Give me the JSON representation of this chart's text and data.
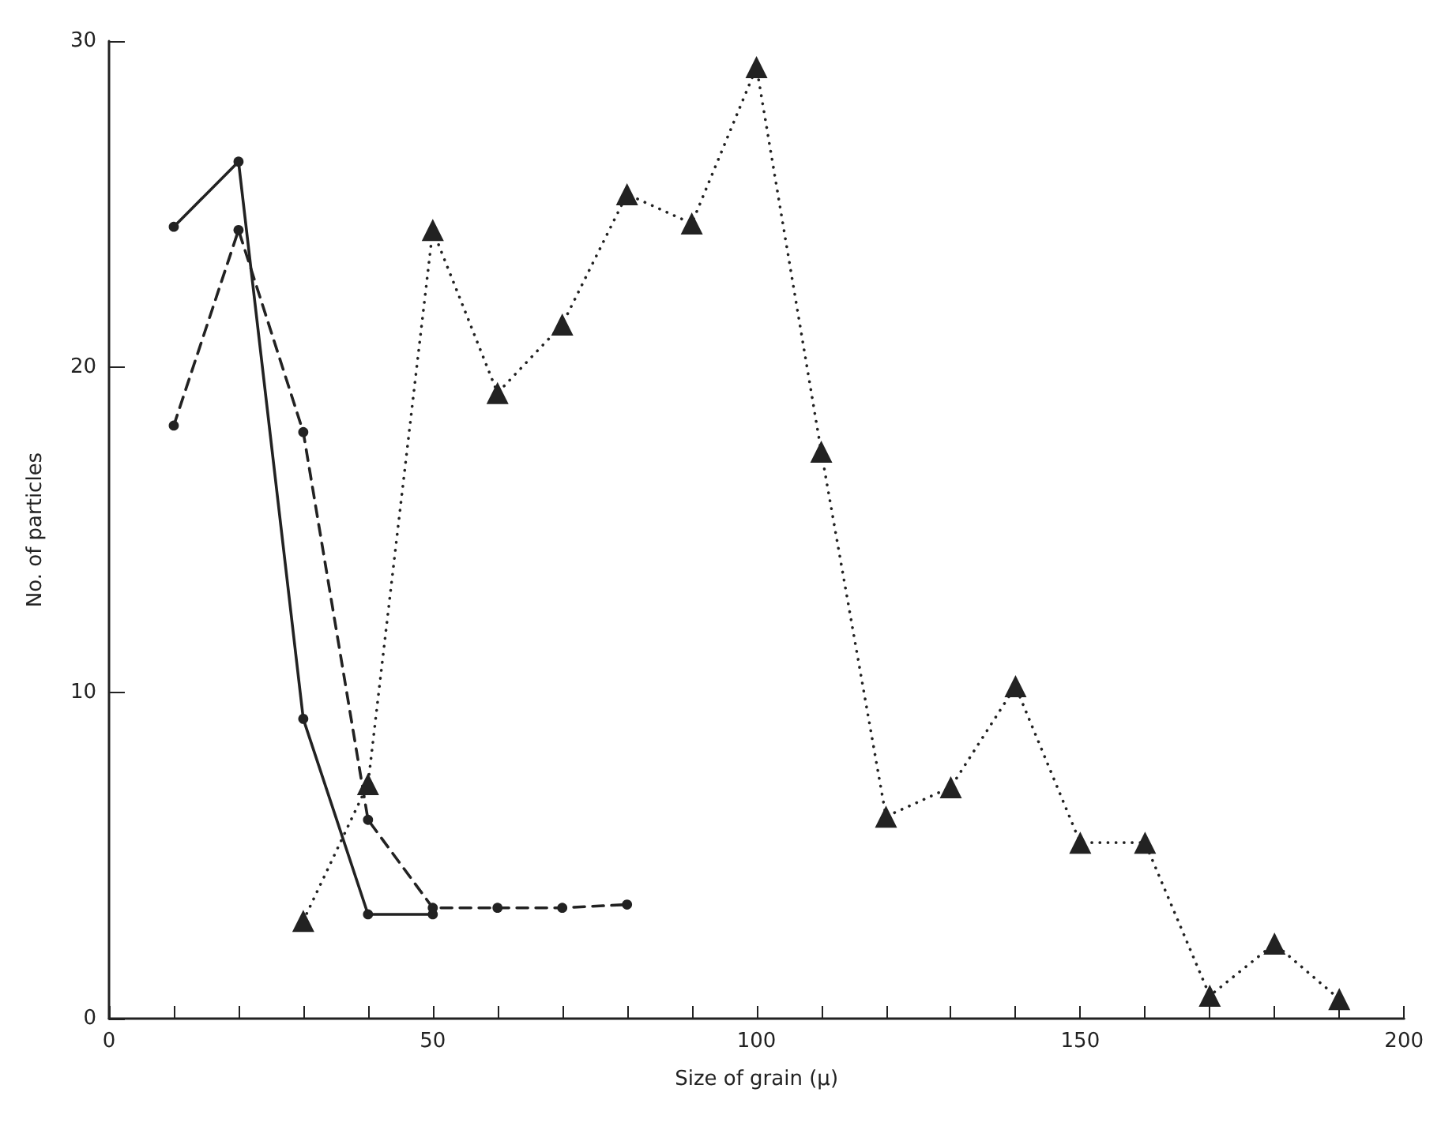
{
  "chart_data": {
    "type": "line",
    "xlabel": "Size of grain (μ)",
    "ylabel": "No. of particles",
    "xlim": [
      0,
      200
    ],
    "ylim": [
      0,
      30
    ],
    "xticks": [
      0,
      {
        "value": 10,
        "label": null
      },
      {
        "value": 20,
        "label": null
      },
      {
        "value": 30,
        "label": null
      },
      {
        "value": 40,
        "label": null
      },
      50,
      {
        "value": 60,
        "label": null
      },
      {
        "value": 70,
        "label": null
      },
      {
        "value": 80,
        "label": null
      },
      {
        "value": 90,
        "label": null
      },
      100,
      {
        "value": 110,
        "label": null
      },
      {
        "value": 120,
        "label": null
      },
      {
        "value": 130,
        "label": null
      },
      {
        "value": 140,
        "label": null
      },
      150,
      {
        "value": 160,
        "label": null
      },
      {
        "value": 170,
        "label": null
      },
      {
        "value": 180,
        "label": null
      },
      {
        "value": 190,
        "label": null
      },
      200
    ],
    "yticks": [
      0,
      10,
      20,
      30
    ],
    "series": [
      {
        "color": "#222222",
        "marker": "circle",
        "line_style": "solid",
        "x": [
          10,
          20,
          30,
          40,
          50
        ],
        "values": [
          24.3,
          26.3,
          9.2,
          3.2,
          3.2
        ]
      },
      {
        "color": "#222222",
        "marker": "circle",
        "line_style": "dashed",
        "x": [
          10,
          20,
          30,
          40,
          50,
          60,
          70,
          80
        ],
        "values": [
          18.2,
          24.2,
          18,
          6.1,
          3.4,
          3.4,
          3.4,
          3.5
        ]
      },
      {
        "color": "#222222",
        "marker": "triangle",
        "line_style": "dotted",
        "x": [
          30,
          40,
          50,
          60,
          70,
          80,
          90,
          100,
          110,
          120,
          130,
          140,
          150,
          160,
          170,
          180,
          190
        ],
        "values": [
          3,
          7.2,
          24.2,
          19.2,
          21.3,
          25.3,
          24.4,
          29.2,
          17.4,
          6.2,
          7.1,
          10.2,
          5.4,
          5.4,
          0.7,
          2.3,
          0.6
        ]
      }
    ]
  }
}
